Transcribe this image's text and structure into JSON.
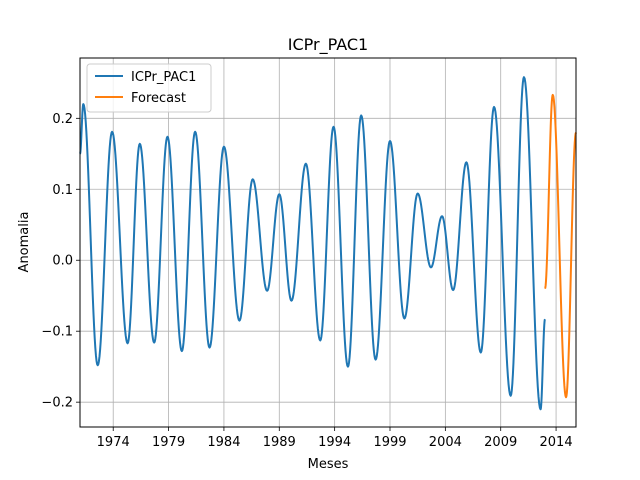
{
  "chart_data": {
    "type": "line",
    "title": "ICPr_PAC1",
    "xlabel": "Meses",
    "ylabel": "Anomalia",
    "xlim": [
      1971.0,
      2015.8
    ],
    "ylim": [
      -0.235,
      0.285
    ],
    "xticks": [
      1974,
      1979,
      1984,
      1989,
      1994,
      1999,
      2004,
      2009,
      2014
    ],
    "yticks": [
      -0.2,
      -0.1,
      0.0,
      0.1,
      0.2
    ],
    "ytick_labels": [
      "−0.2",
      "−0.1",
      "0.0",
      "0.1",
      "0.2"
    ],
    "grid": true,
    "legend_position": "upper-left",
    "series": [
      {
        "name": "ICPr_PAC1",
        "color": "#1f77b4",
        "anchors": [
          [
            1971.0,
            0.15
          ],
          [
            1971.3,
            0.22
          ],
          [
            1972.6,
            -0.148
          ],
          [
            1973.9,
            0.181
          ],
          [
            1975.3,
            -0.117
          ],
          [
            1976.4,
            0.164
          ],
          [
            1977.7,
            -0.116
          ],
          [
            1978.9,
            0.174
          ],
          [
            1980.2,
            -0.128
          ],
          [
            1981.4,
            0.181
          ],
          [
            1982.7,
            -0.123
          ],
          [
            1984.0,
            0.16
          ],
          [
            1985.4,
            -0.085
          ],
          [
            1986.6,
            0.114
          ],
          [
            1987.9,
            -0.043
          ],
          [
            1989.0,
            0.093
          ],
          [
            1990.1,
            -0.057
          ],
          [
            1991.4,
            0.136
          ],
          [
            1992.7,
            -0.113
          ],
          [
            1993.9,
            0.188
          ],
          [
            1995.2,
            -0.15
          ],
          [
            1996.4,
            0.204
          ],
          [
            1997.7,
            -0.14
          ],
          [
            1999.0,
            0.168
          ],
          [
            2000.3,
            -0.082
          ],
          [
            2001.5,
            0.094
          ],
          [
            2002.7,
            -0.01
          ],
          [
            2003.7,
            0.062
          ],
          [
            2004.7,
            -0.042
          ],
          [
            2005.9,
            0.138
          ],
          [
            2007.2,
            -0.13
          ],
          [
            2008.4,
            0.216
          ],
          [
            2009.9,
            -0.191
          ],
          [
            2011.1,
            0.258
          ],
          [
            2012.6,
            -0.21
          ],
          [
            2013.0,
            -0.083
          ]
        ]
      },
      {
        "name": "Forecast",
        "color": "#ff7f0e",
        "anchors": [
          [
            2013.0,
            -0.04
          ],
          [
            2013.7,
            0.233
          ],
          [
            2014.9,
            -0.193
          ],
          [
            2015.8,
            0.18
          ]
        ]
      }
    ]
  }
}
